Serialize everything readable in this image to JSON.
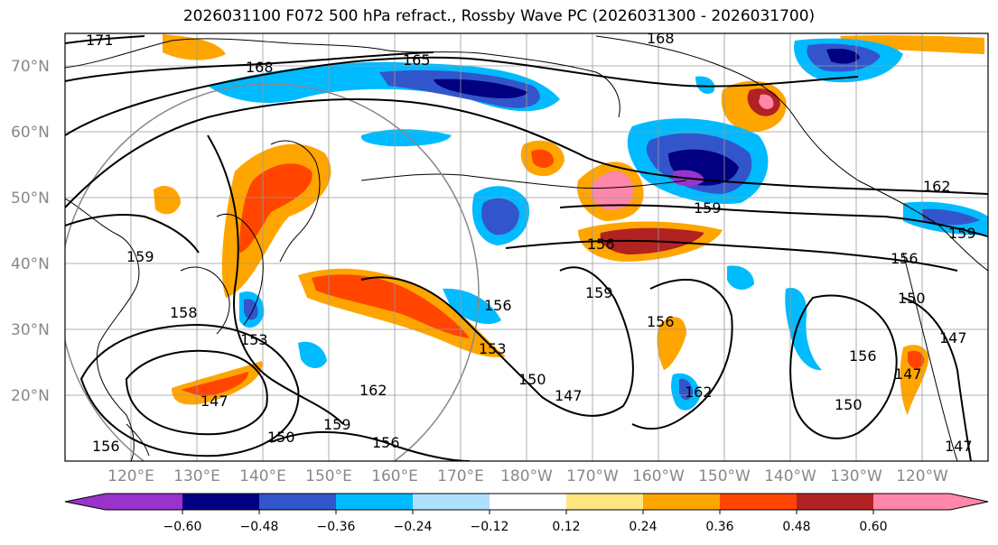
{
  "title": "2026031100 F072 500 hPa refract., Rossby Wave PC (2026031300 - 2026031700)",
  "lat_labels": [
    "70°N",
    "60°N",
    "50°N",
    "40°N",
    "30°N",
    "20°N"
  ],
  "lon_labels": [
    "120°E",
    "130°E",
    "140°E",
    "150°E",
    "160°E",
    "170°E",
    "180°W",
    "170°W",
    "160°W",
    "150°W",
    "140°W",
    "130°W",
    "120°W"
  ],
  "contour_labels": [
    "171",
    "168",
    "165",
    "168",
    "159",
    "158",
    "153",
    "147",
    "150",
    "156",
    "159",
    "162",
    "156",
    "153",
    "150",
    "147",
    "156",
    "159",
    "156",
    "162",
    "156",
    "159",
    "156",
    "150",
    "147",
    "156",
    "150",
    "147",
    "162",
    "147",
    "159"
  ],
  "colorbar": {
    "colors": [
      "#9933cc",
      "#000080",
      "#3355cc",
      "#00bbff",
      "#b0e0ff",
      "#ffffff",
      "#ffe680",
      "#ffa500",
      "#ff4500",
      "#b22222",
      "#ff88aa"
    ],
    "ticks": [
      "−0.60",
      "−0.48",
      "−0.36",
      "−0.24",
      "−0.12",
      "0.12",
      "0.24",
      "0.36",
      "0.48",
      "0.60"
    ]
  },
  "colors": {
    "grid": "#999999",
    "coast": "#000000",
    "contour": "#000000",
    "circle": "#888888"
  }
}
